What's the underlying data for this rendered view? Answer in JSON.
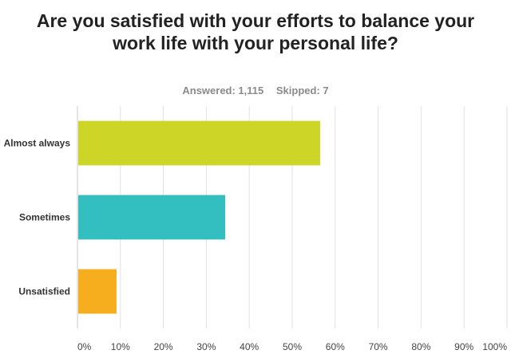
{
  "stats": {
    "answered": "Answered: 1,115",
    "skipped": "Skipped: 7"
  },
  "chart_data": {
    "type": "bar",
    "orientation": "horizontal",
    "title": "Are you satisfied with your efforts to balance your work life with your personal life?",
    "categories": [
      "Almost always",
      "Sometimes",
      "Unsatisfied"
    ],
    "values": [
      56.5,
      34.4,
      9.1
    ],
    "colors": [
      "#cdd627",
      "#33bfbf",
      "#f6ae1e"
    ],
    "xlim": [
      0,
      100
    ],
    "x_ticks": [
      "0%",
      "10%",
      "20%",
      "30%",
      "40%",
      "50%",
      "60%",
      "70%",
      "80%",
      "90%",
      "100%"
    ],
    "grid": true
  }
}
